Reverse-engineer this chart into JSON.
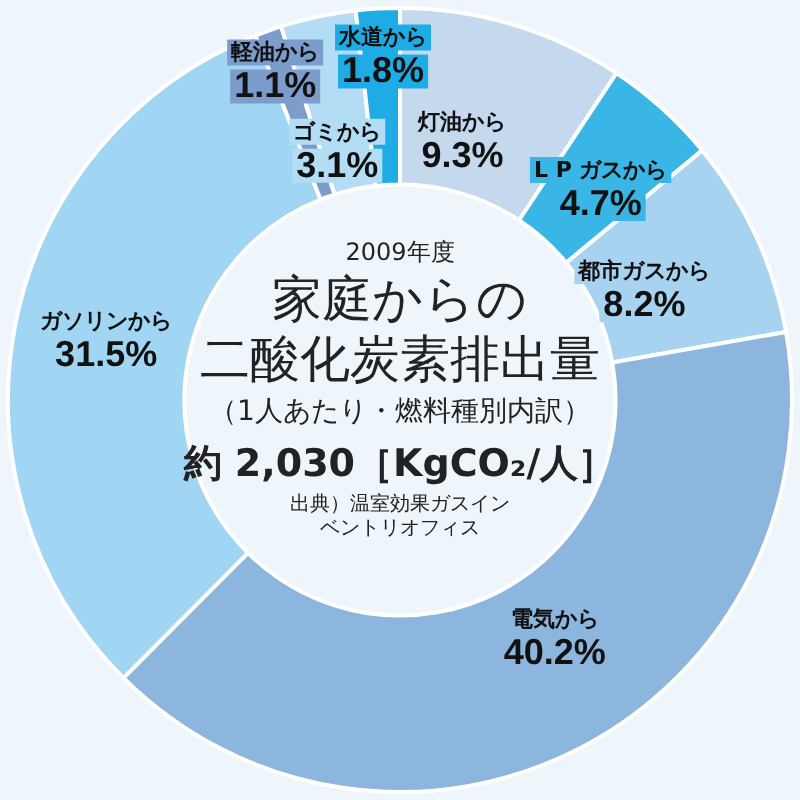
{
  "chart_data": {
    "type": "donut",
    "subtitle": "2009年度",
    "title": "家庭からの二酸化炭素排出量",
    "categories": [
      "灯油から",
      "L P ガスから",
      "都市ガスから",
      "電気から",
      "ガソリンから",
      "軽油から",
      "ゴミから",
      "水道から"
    ],
    "values": [
      9.3,
      4.7,
      8.2,
      40.2,
      31.5,
      1.1,
      3.1,
      1.8
    ],
    "value_labels": [
      "9.3%",
      "4.7%",
      "8.2%",
      "40.2%",
      "31.5%",
      "1.1%",
      "3.1%",
      "1.8%"
    ],
    "colors": [
      "#c4d8ee",
      "#3ab6e6",
      "#a8d3f0",
      "#8db6df",
      "#a0d6f4",
      "#7c9ccc",
      "#b3ddf5",
      "#1facE6"
    ],
    "annotations": [
      "（1人あたり・燃料種別内訳）",
      "約 2,030［KgCO₂/人］",
      "出典）温室効果ガスインベントリオフィス"
    ],
    "legend": false
  }
}
